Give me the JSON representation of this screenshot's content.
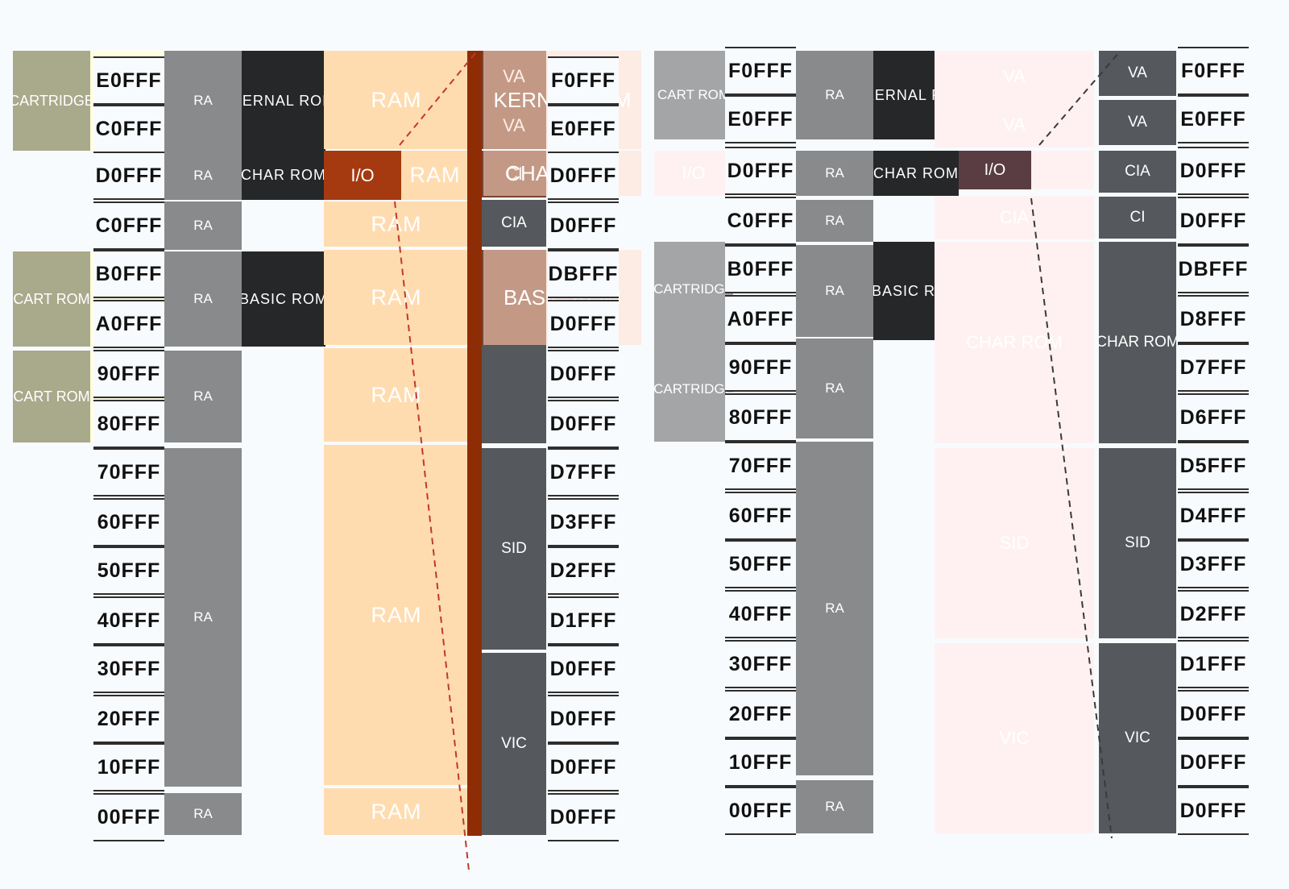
{
  "labels": {
    "ram": "RAM",
    "kernal_rom": "KERNAL ROM",
    "basic_rom": "BASIC ROM",
    "char_rom": "CHAR ROM",
    "io": "I/O",
    "cartridge": "CARTRIDGE"
  },
  "small_labels": {
    "ra": "RA",
    "va": "VA",
    "ci": "CI",
    "cia": "CIA",
    "sid": "SID",
    "vic": "VIC",
    "cartridge_short": "CARTRIDGE",
    "cart_rom": "CART ROM"
  },
  "addresses": {
    "left": [
      "E0FFF",
      "C0FFF",
      "D0FFF",
      "C0FFF",
      "B0FFF",
      "A0FFF",
      "90FFF",
      "80FFF",
      "70FFF",
      "60FFF",
      "50FFF",
      "40FFF",
      "30FFF",
      "20FFF",
      "10FFF",
      "00FFF"
    ],
    "mid": [
      "F0FFF",
      "E0FFF",
      "D0FFF",
      "D0FFF",
      "DBFFF",
      "D0FFF",
      "D0FFF",
      "D0FFF",
      "D7FFF",
      "D3FFF",
      "D2FFF",
      "D1FFF",
      "D0FFF",
      "D0FFF",
      "D0FFF",
      "D0FFF"
    ],
    "right_a": [
      "F0FFF",
      "E0FFF",
      "D0FFF",
      "C0FFF",
      "B0FFF",
      "A0FFF",
      "90FFF",
      "80FFF",
      "70FFF",
      "60FFF",
      "50FFF",
      "40FFF",
      "30FFF",
      "20FFF",
      "10FFF",
      "00FFF"
    ],
    "right_b": [
      "F0FFF",
      "E0FFF",
      "D0FFF",
      "D0FFF",
      "DBFFF",
      "D8FFF",
      "D7FFF",
      "D6FFF",
      "D5FFF",
      "D4FFF",
      "D3FFF",
      "D2FFF",
      "D1FFF",
      "D0FFF",
      "D0FFF",
      "D0FFF"
    ]
  },
  "colors": {
    "dark": "#262729",
    "grey": "#888a8c",
    "slate": "#55585c",
    "olive": "#a9a98b",
    "orange": "#ffdcb0",
    "red": "#a53a10",
    "pink": "#fff1f2",
    "dashed_line": "#c0392b"
  }
}
